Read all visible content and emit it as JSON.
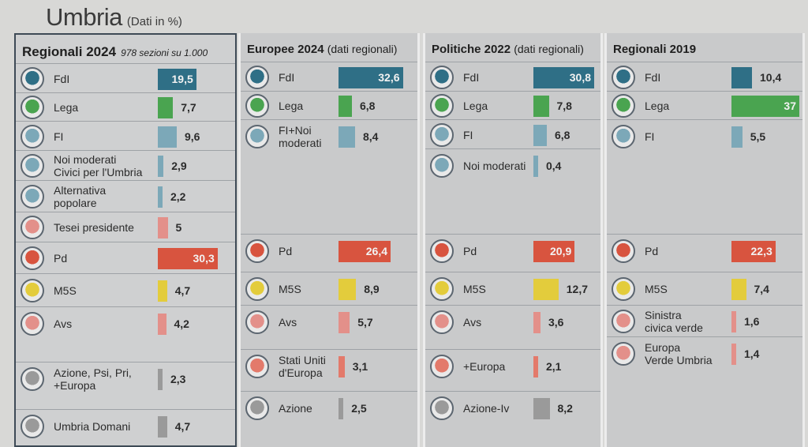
{
  "header": {
    "title": "Umbria",
    "subtitle": "(Dati in %)"
  },
  "colors": {
    "fdi": "#2f6f86",
    "lega": "#4aa450",
    "fi": "#7ca8b8",
    "moderati": "#7ca8b8",
    "altpop": "#7ca8b8",
    "tesei": "#e3908a",
    "pd": "#d8543f",
    "m5s": "#e3cc3c",
    "avs": "#e3908a",
    "euro": "#e37a6b",
    "azione": "#9a9a9a",
    "umbria_domani": "#9a9a9a",
    "scv": "#e3908a",
    "evu": "#e3908a"
  },
  "chart_data": [
    {
      "type": "bar",
      "title": "Regionali 2024",
      "subtitle": "978 sezioni su 1.000",
      "bars": [
        {
          "label": "FdI",
          "value": 19.5,
          "value_text": "19,5",
          "color": "#2f6f86",
          "logo": "fdi-logo"
        },
        {
          "label": "Lega",
          "value": 7.7,
          "value_text": "7,7",
          "color": "#4aa450",
          "logo": "lega-logo"
        },
        {
          "label": "FI",
          "value": 9.6,
          "value_text": "9,6",
          "color": "#7ca8b8",
          "logo": "fi-logo"
        },
        {
          "label": "Noi moderati\nCivici per l'Umbria",
          "value": 2.9,
          "value_text": "2,9",
          "color": "#7ca8b8",
          "logo": "noi-moderati-logo"
        },
        {
          "label": "Alternativa\npopolare",
          "value": 2.2,
          "value_text": "2,2",
          "color": "#7ca8b8",
          "logo": "alternativa-popolare-logo"
        },
        {
          "label": "Tesei presidente",
          "value": 5,
          "value_text": "5",
          "color": "#e3908a",
          "logo": "tesei-logo"
        },
        {
          "label": "Pd",
          "value": 30.3,
          "value_text": "30,3",
          "color": "#d8543f",
          "logo": "pd-logo"
        },
        {
          "label": "M5S",
          "value": 4.7,
          "value_text": "4,7",
          "color": "#e3cc3c",
          "logo": "m5s-logo"
        },
        {
          "label": "Avs",
          "value": 4.2,
          "value_text": "4,2",
          "color": "#e3908a",
          "logo": "avs-logo"
        },
        {
          "label": "Azione, Psi, Pri,\n+Europa",
          "value": 2.3,
          "value_text": "2,3",
          "color": "#9a9a9a",
          "logo": "azione-psi-pri-logo"
        },
        {
          "label": "Umbria Domani",
          "value": 4.7,
          "value_text": "4,7",
          "color": "#9a9a9a",
          "logo": "umbria-domani-logo"
        }
      ]
    },
    {
      "type": "bar",
      "title": "Europee 2024",
      "subtitle": "(dati regionali)",
      "bars": [
        {
          "label": "FdI",
          "value": 32.6,
          "value_text": "32,6",
          "color": "#2f6f86",
          "logo": "fdi-logo"
        },
        {
          "label": "Lega",
          "value": 6.8,
          "value_text": "6,8",
          "color": "#4aa450",
          "logo": "lega-logo"
        },
        {
          "label": "FI+Noi\nmoderati",
          "value": 8.4,
          "value_text": "8,4",
          "color": "#7ca8b8",
          "logo": "fi-noi-moderati-logo"
        },
        {
          "label": "Pd",
          "value": 26.4,
          "value_text": "26,4",
          "color": "#d8543f",
          "logo": "pd-logo"
        },
        {
          "label": "M5S",
          "value": 8.9,
          "value_text": "8,9",
          "color": "#e3cc3c",
          "logo": "m5s-logo"
        },
        {
          "label": "Avs",
          "value": 5.7,
          "value_text": "5,7",
          "color": "#e3908a",
          "logo": "avs-logo"
        },
        {
          "label": "Stati Uniti\nd'Europa",
          "value": 3.1,
          "value_text": "3,1",
          "color": "#e37a6b",
          "logo": "stati-uniti-europa-logo"
        },
        {
          "label": "Azione",
          "value": 2.5,
          "value_text": "2,5",
          "color": "#9a9a9a",
          "logo": "azione-logo"
        }
      ]
    },
    {
      "type": "bar",
      "title": "Politiche 2022",
      "subtitle": "(dati regionali)",
      "bars": [
        {
          "label": "FdI",
          "value": 30.8,
          "value_text": "30,8",
          "color": "#2f6f86",
          "logo": "fdi-logo"
        },
        {
          "label": "Lega",
          "value": 7.8,
          "value_text": "7,8",
          "color": "#4aa450",
          "logo": "lega-logo"
        },
        {
          "label": "FI",
          "value": 6.8,
          "value_text": "6,8",
          "color": "#7ca8b8",
          "logo": "fi-logo"
        },
        {
          "label": "Noi moderati",
          "value": 0.4,
          "value_text": "0,4",
          "color": "#7ca8b8",
          "logo": "noi-moderati-logo"
        },
        {
          "label": "Pd",
          "value": 20.9,
          "value_text": "20,9",
          "color": "#d8543f",
          "logo": "pd-logo"
        },
        {
          "label": "M5S",
          "value": 12.7,
          "value_text": "12,7",
          "color": "#e3cc3c",
          "logo": "m5s-logo"
        },
        {
          "label": "Avs",
          "value": 3.6,
          "value_text": "3,6",
          "color": "#e3908a",
          "logo": "avs-logo"
        },
        {
          "label": "+Europa",
          "value": 2.1,
          "value_text": "2,1",
          "color": "#e37a6b",
          "logo": "piu-europa-logo"
        },
        {
          "label": "Azione-Iv",
          "value": 8.2,
          "value_text": "8,2",
          "color": "#9a9a9a",
          "logo": "azione-iv-logo"
        }
      ]
    },
    {
      "type": "bar",
      "title": "Regionali 2019",
      "subtitle": "",
      "bars": [
        {
          "label": "FdI",
          "value": 10.4,
          "value_text": "10,4",
          "color": "#2f6f86",
          "logo": "fdi-logo"
        },
        {
          "label": "Lega",
          "value": 37,
          "value_text": "37",
          "color": "#4aa450",
          "logo": "lega-logo"
        },
        {
          "label": "FI",
          "value": 5.5,
          "value_text": "5,5",
          "color": "#7ca8b8",
          "logo": "fi-logo"
        },
        {
          "label": "Pd",
          "value": 22.3,
          "value_text": "22,3",
          "color": "#d8543f",
          "logo": "pd-logo"
        },
        {
          "label": "M5S",
          "value": 7.4,
          "value_text": "7,4",
          "color": "#e3cc3c",
          "logo": "m5s-logo"
        },
        {
          "label": "Sinistra\ncivica verde",
          "value": 1.6,
          "value_text": "1,6",
          "color": "#e3908a",
          "logo": "sinistra-civica-verde-logo"
        },
        {
          "label": "Europa\nVerde Umbria",
          "value": 1.4,
          "value_text": "1,4",
          "color": "#e3908a",
          "logo": "europa-verde-umbria-logo"
        }
      ]
    }
  ]
}
